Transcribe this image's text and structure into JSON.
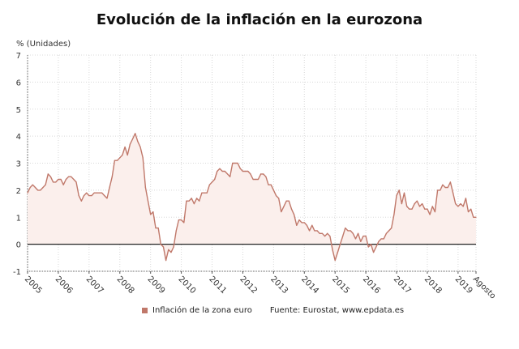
{
  "chart_data": {
    "type": "area",
    "title": "Evolución de la inflación en la eurozona",
    "ylabel": "% (Unidades)",
    "xlabel": "",
    "ylim": [
      -1,
      7
    ],
    "yticks": [
      "-1",
      "0",
      "1",
      "2",
      "3",
      "4",
      "5",
      "6",
      "7"
    ],
    "xticks": [
      "2005",
      "2006",
      "2007",
      "2008",
      "2009",
      "2010",
      "2011",
      "2012",
      "2013",
      "2014",
      "2015",
      "2016",
      "2017",
      "2018",
      "2019",
      "Agosto"
    ],
    "x_start": "2005-01",
    "x_end": "2019-08",
    "frequency": "monthly",
    "grid": true,
    "legend_position": "bottom",
    "line_color": "#c0786a",
    "fill_color": "#fbefec",
    "series": [
      {
        "name": "Inflación de la zona euro",
        "values": [
          1.9,
          2.1,
          2.2,
          2.1,
          2.0,
          2.0,
          2.1,
          2.2,
          2.6,
          2.5,
          2.3,
          2.3,
          2.4,
          2.4,
          2.2,
          2.4,
          2.5,
          2.5,
          2.4,
          2.3,
          1.8,
          1.6,
          1.8,
          1.9,
          1.8,
          1.8,
          1.9,
          1.9,
          1.9,
          1.9,
          1.8,
          1.7,
          2.1,
          2.5,
          3.1,
          3.1,
          3.2,
          3.3,
          3.6,
          3.3,
          3.7,
          3.9,
          4.1,
          3.8,
          3.6,
          3.2,
          2.1,
          1.6,
          1.1,
          1.2,
          0.6,
          0.6,
          0.0,
          -0.1,
          -0.6,
          -0.2,
          -0.3,
          -0.1,
          0.5,
          0.9,
          0.9,
          0.8,
          1.6,
          1.6,
          1.7,
          1.5,
          1.7,
          1.6,
          1.9,
          1.9,
          1.9,
          2.2,
          2.3,
          2.4,
          2.7,
          2.8,
          2.7,
          2.7,
          2.6,
          2.5,
          3.0,
          3.0,
          3.0,
          2.8,
          2.7,
          2.7,
          2.7,
          2.6,
          2.4,
          2.4,
          2.4,
          2.6,
          2.6,
          2.5,
          2.2,
          2.2,
          2.0,
          1.8,
          1.7,
          1.2,
          1.4,
          1.6,
          1.6,
          1.3,
          1.1,
          0.7,
          0.9,
          0.8,
          0.8,
          0.7,
          0.5,
          0.7,
          0.5,
          0.5,
          0.4,
          0.4,
          0.3,
          0.4,
          0.3,
          -0.2,
          -0.6,
          -0.3,
          0.0,
          0.3,
          0.6,
          0.5,
          0.5,
          0.4,
          0.2,
          0.4,
          0.1,
          0.3,
          0.3,
          -0.1,
          0.0,
          -0.3,
          -0.1,
          0.1,
          0.2,
          0.2,
          0.4,
          0.5,
          0.6,
          1.1,
          1.8,
          2.0,
          1.5,
          1.9,
          1.4,
          1.3,
          1.3,
          1.5,
          1.6,
          1.4,
          1.5,
          1.3,
          1.3,
          1.1,
          1.4,
          1.2,
          2.0,
          2.0,
          2.2,
          2.1,
          2.1,
          2.3,
          1.9,
          1.5,
          1.4,
          1.5,
          1.4,
          1.7,
          1.2,
          1.3,
          1.0,
          1.0
        ]
      }
    ],
    "source": "Fuente: Eurostat, www.epdata.es"
  }
}
